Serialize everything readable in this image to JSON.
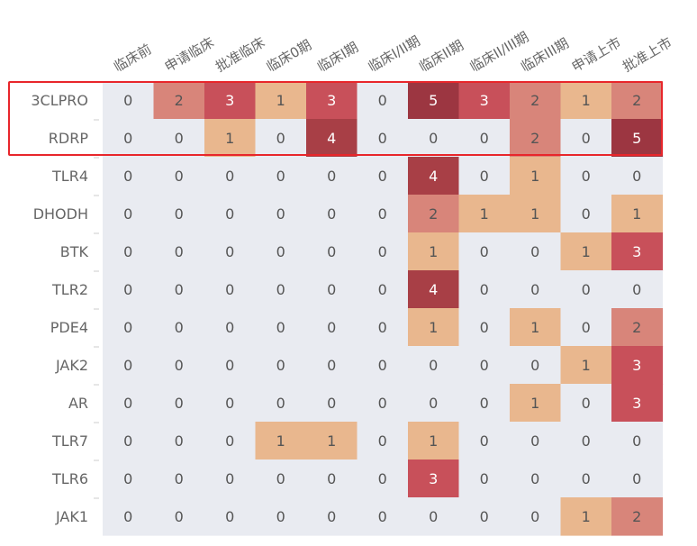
{
  "chart_data": {
    "type": "heatmap",
    "title": "",
    "xlabel": "",
    "ylabel": "",
    "x_categories": [
      "临床前",
      "申请临床",
      "批准临床",
      "临床0期",
      "临床I期",
      "临床I/II期",
      "临床II期",
      "临床II/III期",
      "临床III期",
      "申请上市",
      "批准上市"
    ],
    "y_categories": [
      "3CLPRO",
      "RDRP",
      "TLR4",
      "DHODH",
      "BTK",
      "TLR2",
      "PDE4",
      "JAK2",
      "AR",
      "TLR7",
      "TLR6",
      "JAK1"
    ],
    "values": [
      [
        0,
        2,
        3,
        1,
        3,
        0,
        5,
        3,
        2,
        1,
        2
      ],
      [
        0,
        0,
        1,
        0,
        4,
        0,
        0,
        0,
        2,
        0,
        5
      ],
      [
        0,
        0,
        0,
        0,
        0,
        0,
        4,
        0,
        1,
        0,
        0
      ],
      [
        0,
        0,
        0,
        0,
        0,
        0,
        2,
        1,
        1,
        0,
        1
      ],
      [
        0,
        0,
        0,
        0,
        0,
        0,
        1,
        0,
        0,
        1,
        3
      ],
      [
        0,
        0,
        0,
        0,
        0,
        0,
        4,
        0,
        0,
        0,
        0
      ],
      [
        0,
        0,
        0,
        0,
        0,
        0,
        1,
        0,
        1,
        0,
        2
      ],
      [
        0,
        0,
        0,
        0,
        0,
        0,
        0,
        0,
        0,
        1,
        3
      ],
      [
        0,
        0,
        0,
        0,
        0,
        0,
        0,
        0,
        1,
        0,
        3
      ],
      [
        0,
        0,
        0,
        1,
        1,
        0,
        1,
        0,
        0,
        0,
        0
      ],
      [
        0,
        0,
        0,
        0,
        0,
        0,
        3,
        0,
        0,
        0,
        0
      ],
      [
        0,
        0,
        0,
        0,
        0,
        0,
        0,
        0,
        0,
        1,
        2
      ]
    ],
    "color_scale": {
      "0": "#e9ebf1",
      "1": "#e9b78e",
      "2": "#d8857a",
      "3": "#c8505a",
      "4": "#a83f46",
      "5": "#9c3641"
    },
    "highlighted_rows": [
      "3CLPRO",
      "RDRP"
    ],
    "highlight_color": "#e8262b",
    "text_color_dark": "#555555",
    "text_color_light": "#ffffff",
    "label_color": "#666666"
  }
}
